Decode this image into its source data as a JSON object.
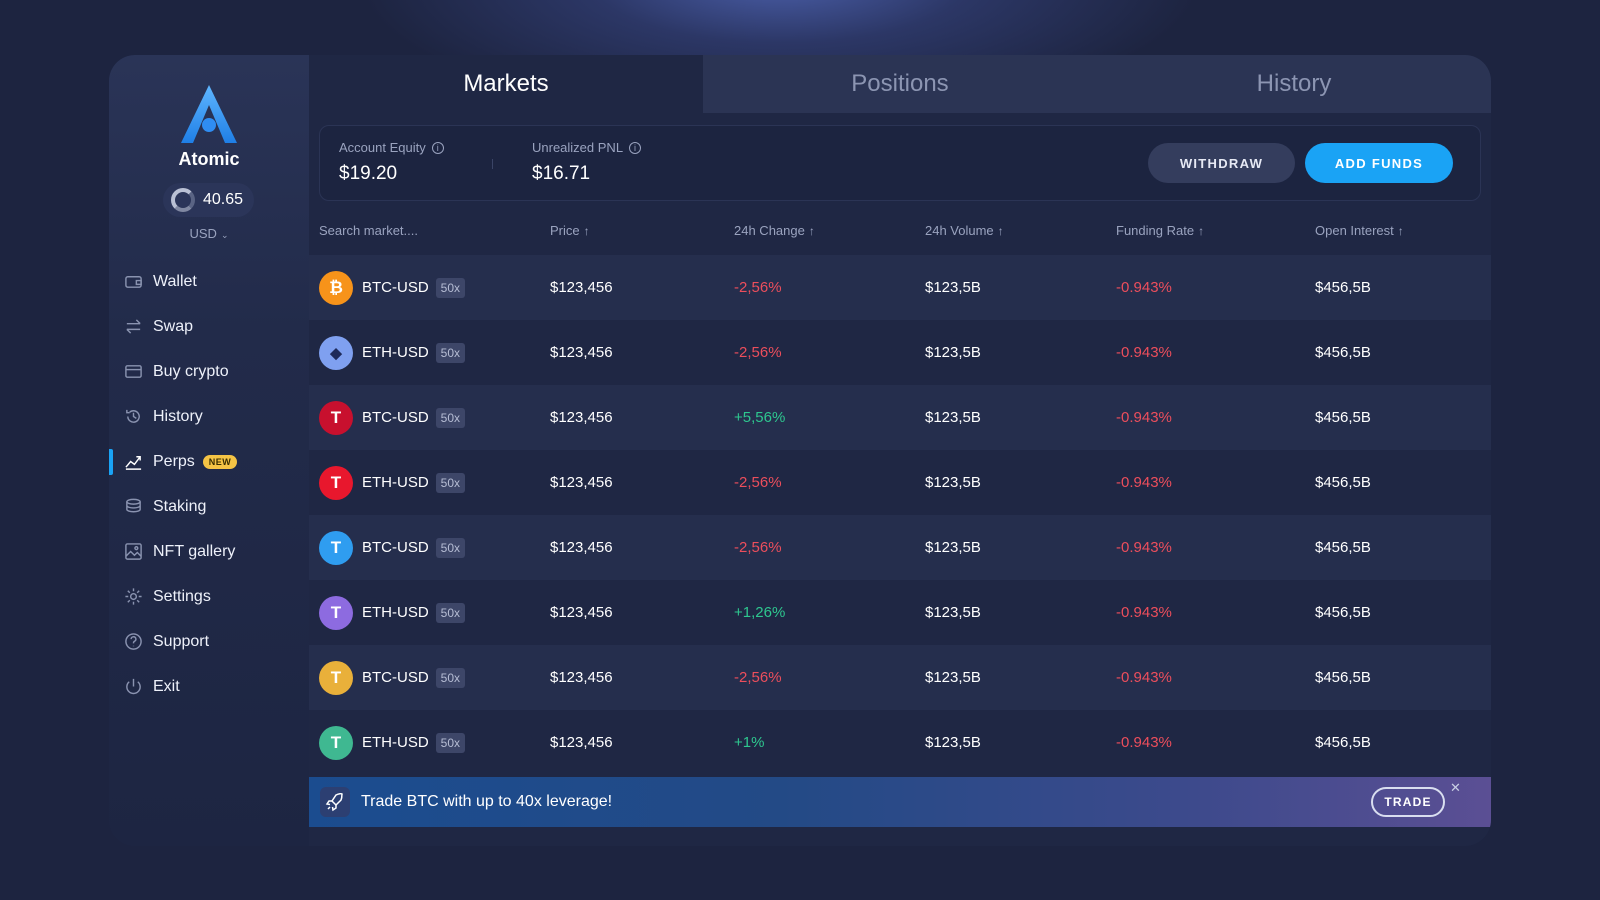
{
  "brand": {
    "name": "Atomic",
    "balance": "40.65",
    "currency": "USD"
  },
  "sidebar": {
    "items": [
      {
        "label": "Wallet",
        "icon": "wallet-icon"
      },
      {
        "label": "Swap",
        "icon": "swap-icon"
      },
      {
        "label": "Buy crypto",
        "icon": "card-icon"
      },
      {
        "label": "History",
        "icon": "history-icon"
      },
      {
        "label": "Perps",
        "icon": "chart-icon",
        "badge": "NEW",
        "active": true
      },
      {
        "label": "Staking",
        "icon": "stack-icon"
      },
      {
        "label": "NFT gallery",
        "icon": "image-icon"
      },
      {
        "label": "Settings",
        "icon": "gear-icon"
      },
      {
        "label": "Support",
        "icon": "help-icon"
      },
      {
        "label": "Exit",
        "icon": "power-icon"
      }
    ]
  },
  "tabs": [
    {
      "label": "Markets",
      "active": true
    },
    {
      "label": "Positions"
    },
    {
      "label": "History"
    }
  ],
  "summary": {
    "equity_label": "Account Equity",
    "equity_value": "$19.20",
    "pnl_label": "Unrealized PNL",
    "pnl_value": "$16.71",
    "withdraw_label": "WITHDRAW",
    "add_funds_label": "ADD FUNDS"
  },
  "table": {
    "search_placeholder": "Search market....",
    "columns": [
      "Price",
      "24h Change",
      "24h Volume",
      "Funding Rate",
      "Open Interest"
    ],
    "rows": [
      {
        "coin": "btc-coin-icon",
        "coin_glyph": "₿",
        "coin_color": "#f7931a",
        "market": "BTC-USD",
        "leverage": "50x",
        "price": "$123,456",
        "change": "-2,56%",
        "dir": "neg",
        "volume": "$123,5B",
        "funding": "-0.943%",
        "oi": "$456,5B"
      },
      {
        "coin": "eth-coin-icon",
        "coin_glyph": "◆",
        "coin_color": "#6f8fe6",
        "market": "ETH-USD",
        "leverage": "50x",
        "price": "$123,456",
        "change": "-2,56%",
        "dir": "neg",
        "volume": "$123,5B",
        "funding": "-0.943%",
        "oi": "$456,5B"
      },
      {
        "coin": "tron-coin-icon",
        "coin_glyph": "T",
        "coin_color": "#c8102e",
        "market": "BTC-USD",
        "leverage": "50x",
        "price": "$123,456",
        "change": "+5,56%",
        "dir": "pos",
        "volume": "$123,5B",
        "funding": "-0.943%",
        "oi": "$456,5B"
      },
      {
        "coin": "tron-coin-icon",
        "coin_glyph": "T",
        "coin_color": "#e8172d",
        "market": "ETH-USD",
        "leverage": "50x",
        "price": "$123,456",
        "change": "-2,56%",
        "dir": "neg",
        "volume": "$123,5B",
        "funding": "-0.943%",
        "oi": "$456,5B"
      },
      {
        "coin": "tether-coin-icon",
        "coin_glyph": "T",
        "coin_color": "#2f9df0",
        "market": "BTC-USD",
        "leverage": "50x",
        "price": "$123,456",
        "change": "-2,56%",
        "dir": "neg",
        "volume": "$123,5B",
        "funding": "-0.943%",
        "oi": "$456,5B"
      },
      {
        "coin": "tether-coin-icon",
        "coin_glyph": "T",
        "coin_color": "#8d6be0",
        "market": "ETH-USD",
        "leverage": "50x",
        "price": "$123,456",
        "change": "+1,26%",
        "dir": "pos",
        "volume": "$123,5B",
        "funding": "-0.943%",
        "oi": "$456,5B"
      },
      {
        "coin": "tether-coin-icon",
        "coin_glyph": "T",
        "coin_color": "#e9b03a",
        "market": "BTC-USD",
        "leverage": "50x",
        "price": "$123,456",
        "change": "-2,56%",
        "dir": "neg",
        "volume": "$123,5B",
        "funding": "-0.943%",
        "oi": "$456,5B"
      },
      {
        "coin": "tether-coin-icon",
        "coin_glyph": "T",
        "coin_color": "#3fb891",
        "market": "ETH-USD",
        "leverage": "50x",
        "price": "$123,456",
        "change": "+1%",
        "dir": "pos",
        "volume": "$123,5B",
        "funding": "-0.943%",
        "oi": "$456,5B"
      }
    ]
  },
  "promo": {
    "text": "Trade BTC with up to 40x leverage!",
    "button_label": "TRADE",
    "close_glyph": "✕"
  }
}
